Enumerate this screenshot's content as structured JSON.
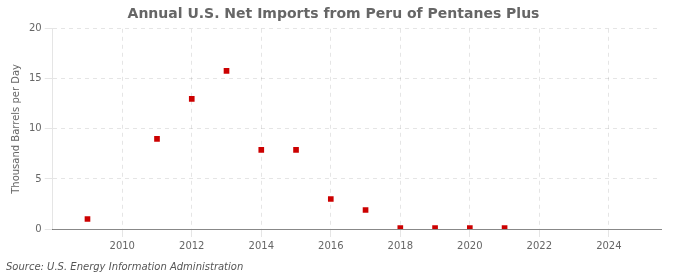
{
  "chart_data": {
    "type": "scatter",
    "title": "Annual U.S. Net Imports from Peru of Pentanes Plus",
    "y_label": "Thousand Barrels per Day",
    "annotations": [
      "Source: U.S. Energy Information Administration"
    ],
    "x": [
      2009,
      2011,
      2012,
      2013,
      2014,
      2015,
      2016,
      2017,
      2018,
      2019,
      2020,
      2021
    ],
    "values": [
      1.0,
      9.0,
      13.0,
      15.8,
      7.9,
      7.9,
      3.0,
      1.9,
      0.08,
      0.08,
      0.08,
      0.08
    ],
    "color": "#cc0000",
    "marker": "square",
    "xlim": [
      2008.0,
      2025.5
    ],
    "xticks": [
      2010,
      2012,
      2014,
      2016,
      2018,
      2020,
      2022,
      2024
    ],
    "ylim": [
      0,
      20
    ],
    "yticks": [
      0,
      5,
      10,
      15,
      20
    ],
    "grid": true
  }
}
